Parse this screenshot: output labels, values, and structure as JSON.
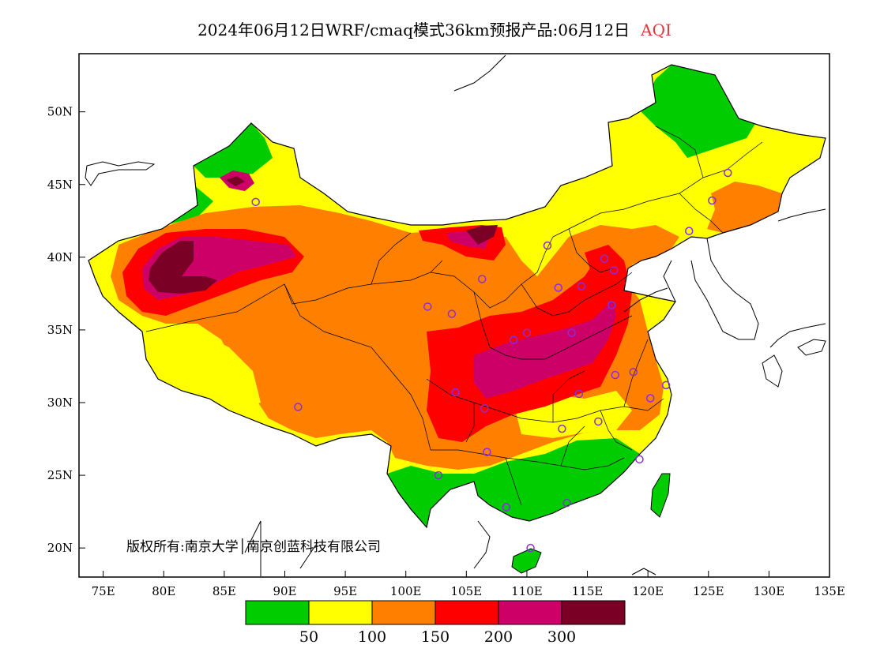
{
  "title": {
    "main": "2024年06月12日WRF/cmaq模式36km预报产品:06月12日",
    "variable": "AQI",
    "variable_color": "#e0393c"
  },
  "copyright": "版权所有:南京大学│南京创蓝科技有限公司",
  "axes": {
    "lon_labels": [
      "75E",
      "80E",
      "85E",
      "90E",
      "95E",
      "100E",
      "105E",
      "110E",
      "115E",
      "120E",
      "125E",
      "130E",
      "135E"
    ],
    "lat_labels": [
      "50N",
      "45N",
      "40N",
      "35N",
      "30N",
      "25N",
      "20N"
    ],
    "lon_range": [
      73,
      135
    ],
    "lat_range": [
      18,
      54
    ]
  },
  "legend": {
    "colors": [
      "#00cc00",
      "#ffff00",
      "#ff8000",
      "#ff0000",
      "#cc0066",
      "#7a0026"
    ],
    "labels": [
      "50",
      "100",
      "150",
      "200",
      "300"
    ]
  },
  "stations": [
    [
      126.6,
      45.8
    ],
    [
      125.3,
      43.9
    ],
    [
      123.4,
      41.8
    ],
    [
      116.4,
      39.9
    ],
    [
      117.2,
      39.1
    ],
    [
      114.5,
      38.0
    ],
    [
      112.6,
      37.9
    ],
    [
      111.7,
      40.8
    ],
    [
      106.3,
      38.5
    ],
    [
      103.8,
      36.1
    ],
    [
      101.8,
      36.6
    ],
    [
      87.6,
      43.8
    ],
    [
      91.1,
      29.7
    ],
    [
      104.1,
      30.7
    ],
    [
      106.5,
      29.6
    ],
    [
      106.7,
      26.6
    ],
    [
      102.7,
      25.0
    ],
    [
      108.3,
      22.8
    ],
    [
      110.3,
      20.0
    ],
    [
      113.3,
      23.1
    ],
    [
      112.9,
      28.2
    ],
    [
      115.9,
      28.7
    ],
    [
      114.3,
      30.6
    ],
    [
      117.3,
      31.9
    ],
    [
      118.8,
      32.1
    ],
    [
      120.2,
      30.3
    ],
    [
      121.5,
      31.2
    ],
    [
      119.3,
      26.1
    ],
    [
      113.7,
      34.8
    ],
    [
      117.0,
      36.7
    ],
    [
      108.9,
      34.3
    ],
    [
      110.0,
      34.8
    ]
  ],
  "colors": {
    "background_outside": "#ffffff",
    "ocean": "#ffffff",
    "boundary": "#000000",
    "station_circle": "#8a2be2"
  }
}
